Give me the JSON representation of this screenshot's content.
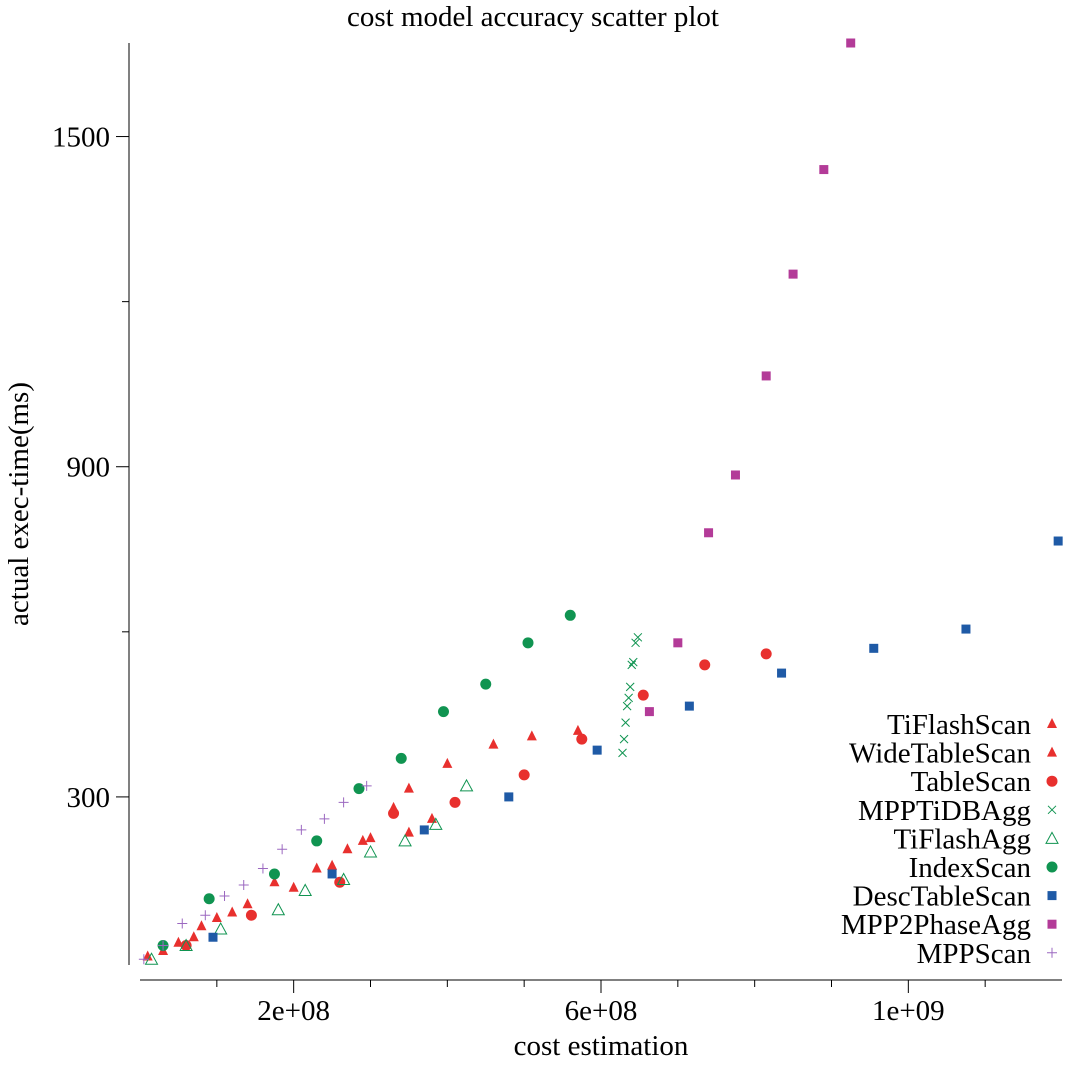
{
  "chart_data": {
    "type": "scatter",
    "title": "cost model accuracy scatter plot",
    "xlabel": "cost estimation",
    "ylabel": "actual exec-time(ms)",
    "xlim": [
      0,
      1200000000
    ],
    "ylim": [
      0,
      1670
    ],
    "xticks": [
      {
        "value": 200000000,
        "label": "2e+08"
      },
      {
        "value": 600000000,
        "label": "6e+08"
      },
      {
        "value": 1000000000,
        "label": "1e+09"
      }
    ],
    "x_minor_ticks": [
      100000000,
      300000000,
      400000000,
      500000000,
      700000000,
      800000000,
      900000000,
      1100000000
    ],
    "yticks": [
      {
        "value": 300,
        "label": "300"
      },
      {
        "value": 900,
        "label": "900"
      },
      {
        "value": 1500,
        "label": "1500"
      }
    ],
    "y_minor_ticks": [
      600,
      1200
    ],
    "grid": false,
    "legend_position": "bottom-right",
    "series": [
      {
        "name": "TiFlashScan",
        "marker": "triangle",
        "color": "#e8302e",
        "points": [
          [
            10000000,
            10
          ],
          [
            50000000,
            35
          ],
          [
            80000000,
            65
          ],
          [
            120000000,
            90
          ],
          [
            175000000,
            145
          ],
          [
            250000000,
            175
          ],
          [
            290000000,
            220
          ],
          [
            380000000,
            260
          ],
          [
            570000000,
            420
          ]
        ]
      },
      {
        "name": "WideTableScan",
        "marker": "triangle",
        "color": "#e8302e",
        "points": [
          [
            30000000,
            20
          ],
          [
            70000000,
            45
          ],
          [
            100000000,
            80
          ],
          [
            140000000,
            105
          ],
          [
            200000000,
            135
          ],
          [
            230000000,
            170
          ],
          [
            270000000,
            205
          ],
          [
            300000000,
            225
          ],
          [
            330000000,
            280
          ],
          [
            350000000,
            235
          ],
          [
            350000000,
            315
          ],
          [
            400000000,
            360
          ],
          [
            460000000,
            395
          ],
          [
            510000000,
            410
          ]
        ]
      },
      {
        "name": "TableScan",
        "marker": "circle",
        "color": "#e8302e",
        "points": [
          [
            60000000,
            30
          ],
          [
            145000000,
            85
          ],
          [
            260000000,
            145
          ],
          [
            330000000,
            270
          ],
          [
            410000000,
            290
          ],
          [
            500000000,
            340
          ],
          [
            575000000,
            405
          ],
          [
            655000000,
            485
          ],
          [
            735000000,
            540
          ],
          [
            815000000,
            560
          ]
        ]
      },
      {
        "name": "MPPTiDBAgg",
        "marker": "x",
        "color": "#109451",
        "points": [
          [
            628000000,
            380
          ],
          [
            630000000,
            405
          ],
          [
            632000000,
            435
          ],
          [
            634000000,
            465
          ],
          [
            636000000,
            480
          ],
          [
            638000000,
            500
          ],
          [
            640000000,
            540
          ],
          [
            642000000,
            545
          ],
          [
            645000000,
            580
          ],
          [
            648000000,
            590
          ]
        ]
      },
      {
        "name": "TiFlashAgg",
        "marker": "triangle-open",
        "color": "#109451",
        "points": [
          [
            15000000,
            5
          ],
          [
            60000000,
            30
          ],
          [
            105000000,
            60
          ],
          [
            180000000,
            95
          ],
          [
            215000000,
            130
          ],
          [
            265000000,
            150
          ],
          [
            300000000,
            200
          ],
          [
            345000000,
            220
          ],
          [
            385000000,
            250
          ],
          [
            425000000,
            320
          ]
        ]
      },
      {
        "name": "IndexScan",
        "marker": "circle",
        "color": "#109451",
        "points": [
          [
            30000000,
            30
          ],
          [
            90000000,
            115
          ],
          [
            175000000,
            160
          ],
          [
            230000000,
            220
          ],
          [
            285000000,
            315
          ],
          [
            340000000,
            370
          ],
          [
            395000000,
            455
          ],
          [
            450000000,
            505
          ],
          [
            505000000,
            580
          ],
          [
            560000000,
            630
          ]
        ]
      },
      {
        "name": "DescTableScan",
        "marker": "square",
        "color": "#1f5aa6",
        "points": [
          [
            95000000,
            45
          ],
          [
            250000000,
            160
          ],
          [
            370000000,
            240
          ],
          [
            480000000,
            300
          ],
          [
            595000000,
            385
          ],
          [
            715000000,
            465
          ],
          [
            835000000,
            525
          ],
          [
            955000000,
            570
          ],
          [
            1075000000,
            605
          ],
          [
            1195000000,
            765
          ]
        ]
      },
      {
        "name": "MPP2PhaseAgg",
        "marker": "square",
        "color": "#b33b98",
        "points": [
          [
            663000000,
            455
          ],
          [
            700000000,
            580
          ],
          [
            740000000,
            780
          ],
          [
            775000000,
            885
          ],
          [
            815000000,
            1065
          ],
          [
            850000000,
            1250
          ],
          [
            890000000,
            1440
          ],
          [
            925000000,
            1670
          ]
        ]
      },
      {
        "name": "MPPScan",
        "marker": "plus",
        "color": "#9b68c0",
        "points": [
          [
            5000000,
            5
          ],
          [
            30000000,
            30
          ],
          [
            55000000,
            70
          ],
          [
            85000000,
            85
          ],
          [
            110000000,
            120
          ],
          [
            135000000,
            140
          ],
          [
            160000000,
            170
          ],
          [
            185000000,
            205
          ],
          [
            210000000,
            240
          ],
          [
            240000000,
            260
          ],
          [
            265000000,
            290
          ],
          [
            295000000,
            320
          ]
        ]
      }
    ]
  }
}
